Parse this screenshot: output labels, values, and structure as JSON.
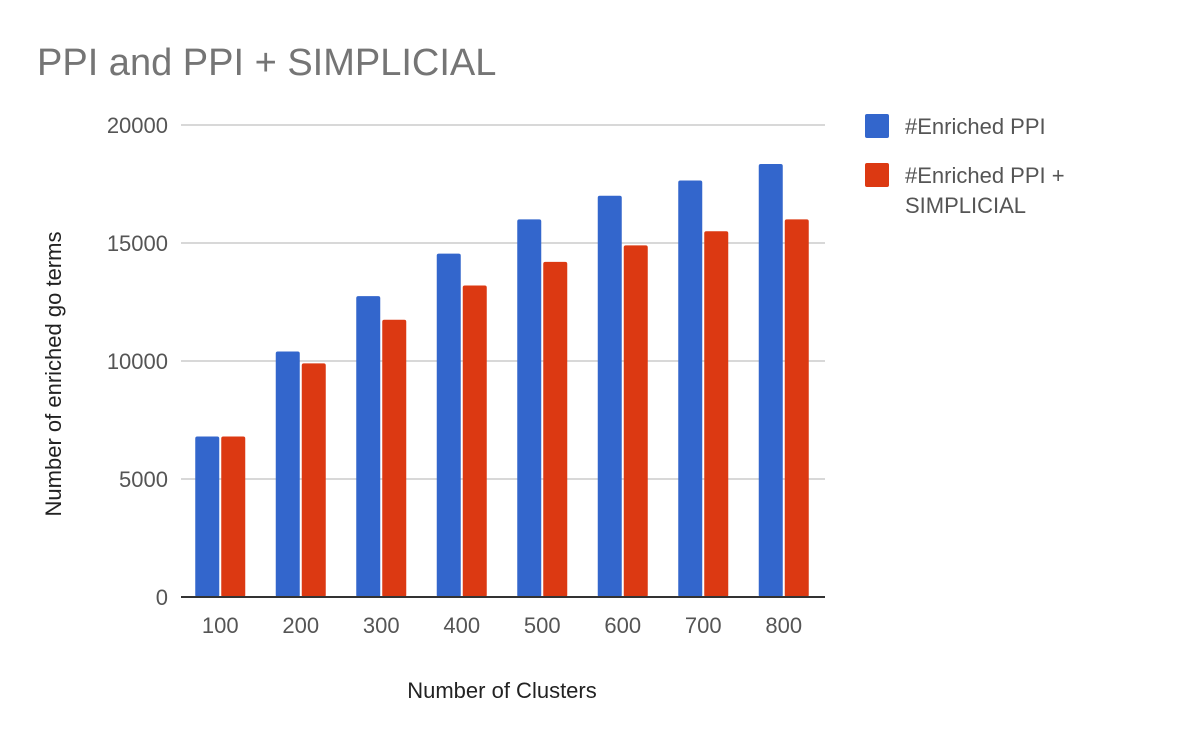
{
  "chart_data": {
    "type": "bar",
    "title": "PPI and PPI + SIMPLICIAL",
    "xlabel": "Number of Clusters",
    "ylabel": "Number of enriched go terms",
    "categories": [
      "100",
      "200",
      "300",
      "400",
      "500",
      "600",
      "700",
      "800"
    ],
    "ylim": [
      0,
      20000
    ],
    "yticks": [
      "0",
      "5000",
      "10000",
      "15000",
      "20000"
    ],
    "grid": true,
    "legend_position": "right",
    "series": [
      {
        "name": "#Enriched PPI",
        "color": "#3366cc",
        "values": [
          6800,
          10400,
          12750,
          14550,
          16000,
          17000,
          17650,
          18350
        ]
      },
      {
        "name": "#Enriched PPI + SIMPLICIAL",
        "legend_lines": [
          "#Enriched PPI +",
          "SIMPLICIAL"
        ],
        "color": "#dc3912",
        "values": [
          6800,
          9900,
          11750,
          13200,
          14200,
          14900,
          15500,
          16000
        ]
      }
    ]
  }
}
